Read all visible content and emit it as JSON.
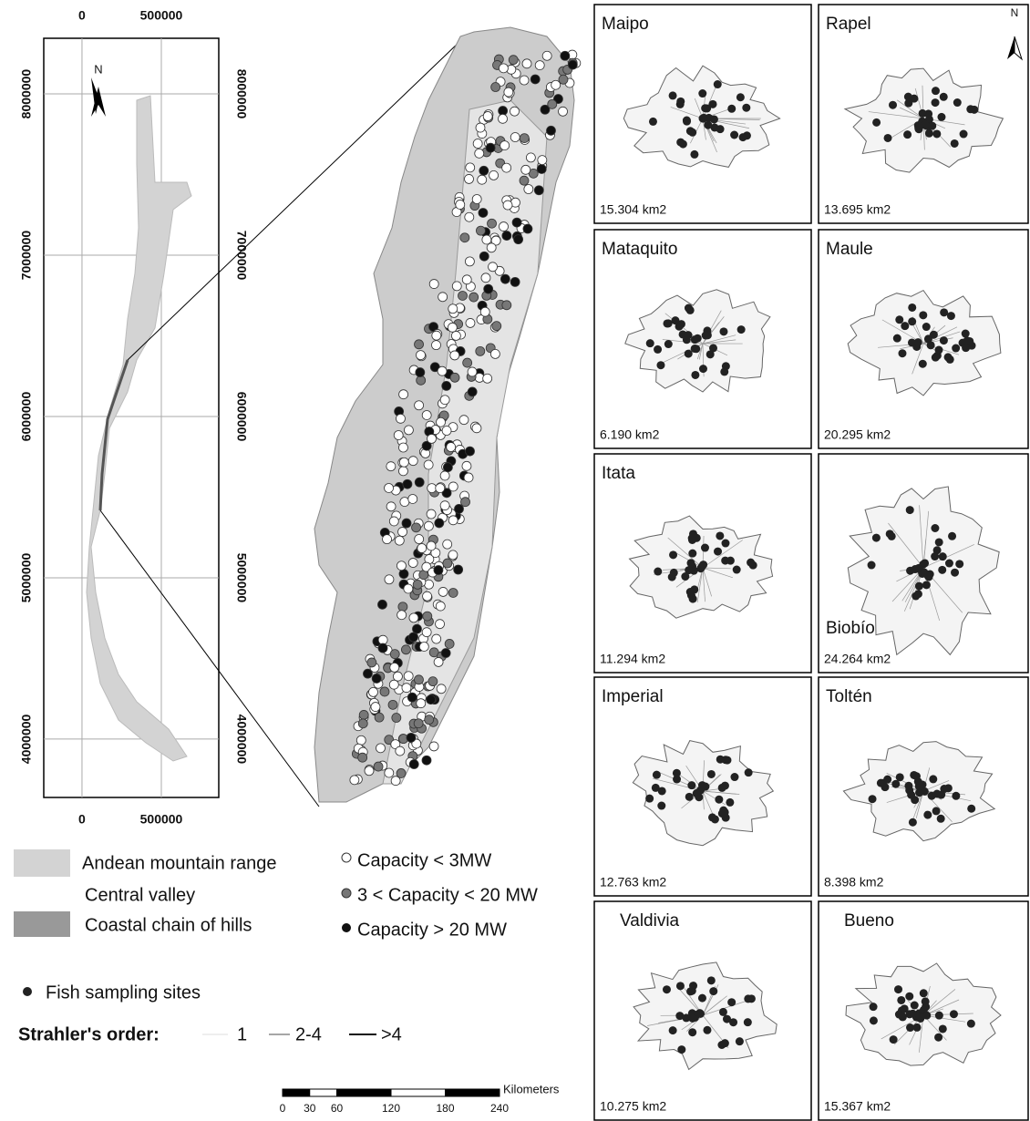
{
  "overview_map": {
    "north": "N",
    "xlim": [
      -241000,
      862000
    ],
    "ylim": [
      3638000,
      8345000
    ],
    "x_ticks": [
      0,
      500000
    ],
    "y_ticks": [
      8000000,
      7000000,
      6000000,
      5000000,
      4000000
    ]
  },
  "legend": {
    "regions": [
      "Andean mountain range",
      "Central valley",
      "Coastal chain of hills"
    ],
    "capacity": [
      "Capacity < 3MW",
      "3 < Capacity < 20 MW",
      "Capacity > 20 MW"
    ],
    "fish": "Fish sampling sites",
    "strahler_title": "Strahler's order:",
    "strahler_classes": [
      "1",
      "2-4",
      ">4"
    ]
  },
  "basin_north": "N",
  "basins": [
    {
      "name": "Maipo",
      "area": "15.304 km2"
    },
    {
      "name": "Rapel",
      "area": "13.695 km2"
    },
    {
      "name": "Mataquito",
      "area": "6.190 km2"
    },
    {
      "name": "Maule",
      "area": "20.295 km2"
    },
    {
      "name": "Itata",
      "area": "11.294 km2"
    },
    {
      "name": "Biobío",
      "area": "24.264 km2"
    },
    {
      "name": "Imperial",
      "area": "12.763 km2"
    },
    {
      "name": "Toltén",
      "area": "8.398 km2"
    },
    {
      "name": "Valdivia",
      "area": "10.275 km2"
    },
    {
      "name": "Bueno",
      "area": "15.367 km2"
    }
  ],
  "scale_bar": {
    "unit": "Kilometers",
    "ticks": [
      0,
      30,
      60,
      120,
      180,
      240
    ]
  }
}
